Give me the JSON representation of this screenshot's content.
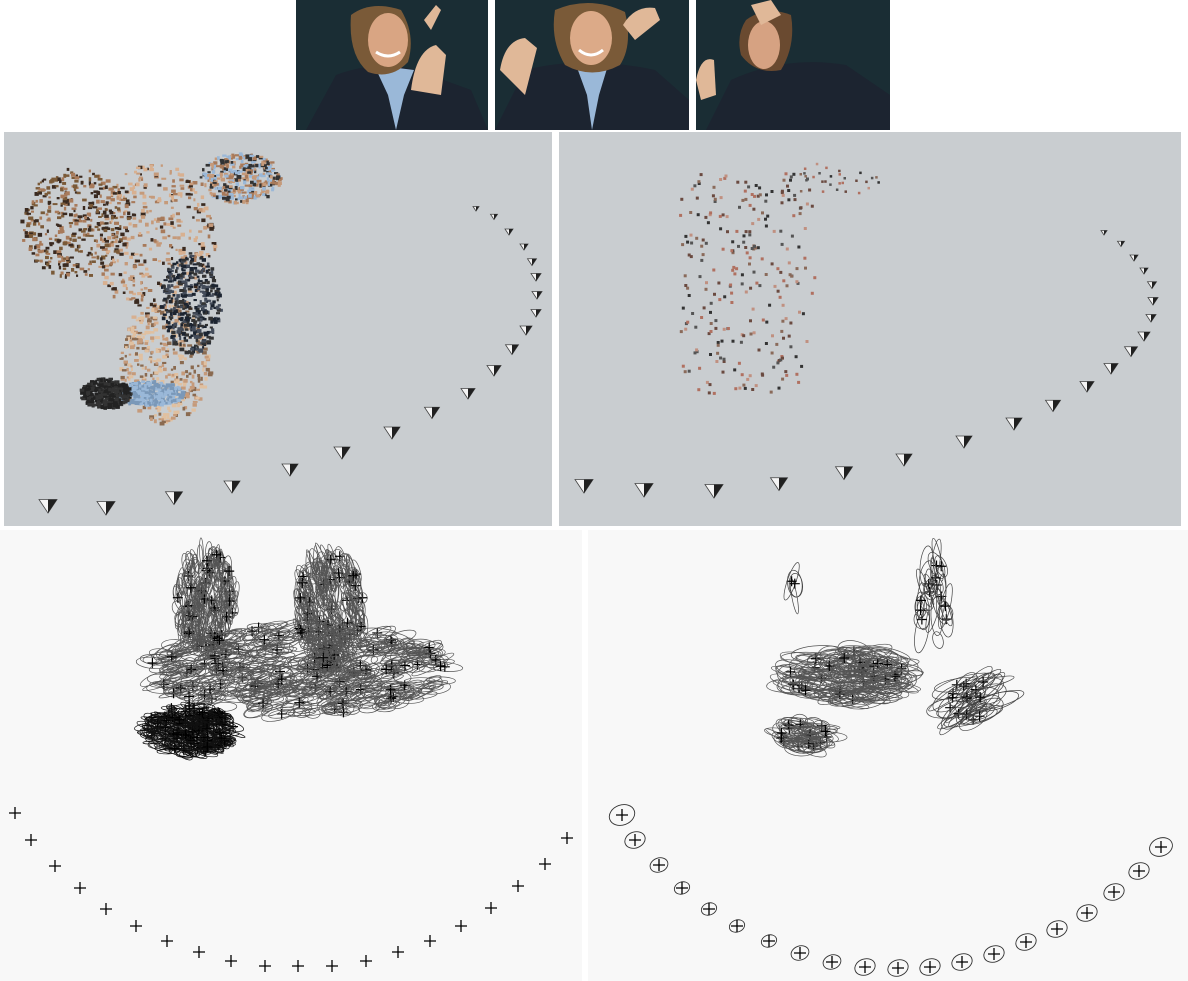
{
  "figure": {
    "photos": [
      {
        "name": "photo-1"
      },
      {
        "name": "photo-2"
      },
      {
        "name": "photo-3"
      }
    ],
    "colors": {
      "render_bg": "#c9cdd0",
      "plot_bg": "#f8f8f8",
      "cluster_dark": "#555555",
      "cluster_black": "#111111",
      "skin": "#c59a7a",
      "jacket": "#1c2430",
      "shirt": "#9ab8d8"
    }
  }
}
